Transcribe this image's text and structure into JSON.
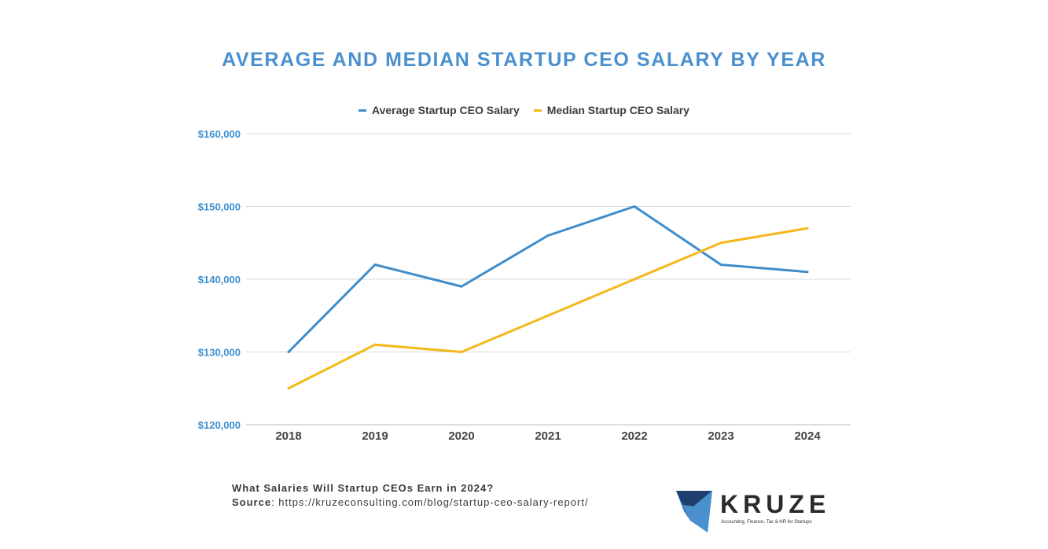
{
  "colors": {
    "average": "#3f8dcb",
    "median": "#f4b81c",
    "title": "#4a90cf",
    "y_tick": "#3c8fd0",
    "x_tick": "#444444",
    "grid": "#d9d9d9",
    "logo_dark": "#1f3f6e",
    "logo_light": "#4a90cf"
  },
  "chart_data": {
    "type": "line",
    "title": "AVERAGE AND MEDIAN STARTUP CEO SALARY BY YEAR",
    "categories": [
      "2018",
      "2019",
      "2020",
      "2021",
      "2022",
      "2023",
      "2024"
    ],
    "series": [
      {
        "name": "Average Startup CEO Salary",
        "values": [
          130000,
          142000,
          139000,
          146000,
          150000,
          142000,
          141000
        ]
      },
      {
        "name": "Median Startup CEO Salary",
        "values": [
          125000,
          131000,
          130000,
          135000,
          140000,
          145000,
          147000
        ]
      }
    ],
    "ylim": [
      120000,
      160000
    ],
    "yticks": [
      120000,
      130000,
      140000,
      150000,
      160000
    ],
    "ytick_labels": [
      "$120,000",
      "$130,000",
      "$140,000",
      "$150,000",
      "$160,000"
    ],
    "grid": true,
    "legend": "top"
  },
  "footer": {
    "question": "What Salaries Will Startup CEOs Earn in 2024?",
    "source_label": "Source",
    "source_url": ": https://kruzeconsulting.com/blog/startup-ceo-salary-report/"
  },
  "logo": {
    "name": "KRUZE",
    "tagline": "Accounting, Finance, Tax & HR for Startups"
  }
}
